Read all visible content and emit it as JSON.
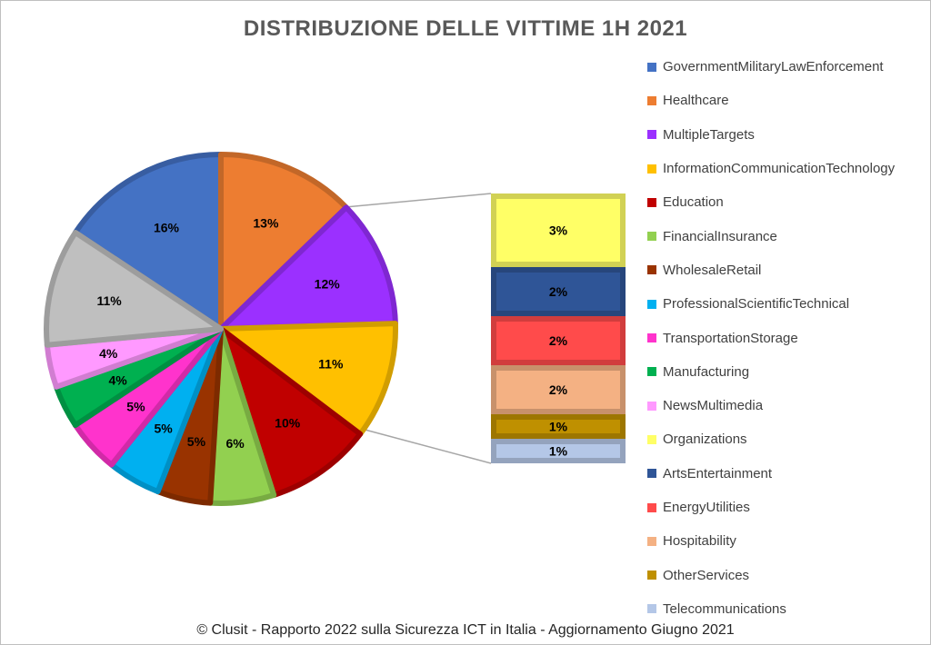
{
  "chart_data": {
    "type": "pie",
    "title": "DISTRIBUZIONE DELLE VITTIME 1H 2021",
    "categories": [
      "GovernmentMilitaryLawEnforcement",
      "Healthcare",
      "MultipleTargets",
      "InformationCommunicationTechnology",
      "Education",
      "FinancialInsurance",
      "WholesaleRetail",
      "ProfessionalScientificTechnical",
      "TransportationStorage",
      "Manufacturing",
      "NewsMultimedia",
      "Organizations",
      "ArtsEntertainment",
      "EnergyUtilities",
      "Hospitability",
      "OtherServices",
      "Telecommunications"
    ],
    "values": [
      16,
      13,
      12,
      11,
      10,
      6,
      5,
      5,
      5,
      4,
      4,
      3,
      2,
      2,
      2,
      1,
      1
    ],
    "value_labels": [
      "16%",
      "13%",
      "12%",
      "11%",
      "10%",
      "6%",
      "5%",
      "5%",
      "5%",
      "4%",
      "4%",
      "3%",
      "2%",
      "2%",
      "2%",
      "1%",
      "1%"
    ],
    "other_label": "11%",
    "secondary_categories": [
      "Organizations",
      "ArtsEntertainment",
      "EnergyUtilities",
      "Hospitability",
      "OtherServices",
      "Telecommunications"
    ],
    "colors": [
      "#4472C4",
      "#ED7D31",
      "#9B30FF",
      "#FFC000",
      "#C00000",
      "#92D050",
      "#993300",
      "#00B0F0",
      "#FF33CC",
      "#00B050",
      "#FF99FF",
      "#FFFF66",
      "#2F5597",
      "#FF4B4B",
      "#F4B183",
      "#BF9000",
      "#B4C7E7"
    ],
    "other_color": "#BFBFBF",
    "label_colors": {
      "dark": "#000000",
      "light": "#ffffff"
    },
    "legend": {
      "position": "right"
    }
  },
  "footer": "© Clusit - Rapporto 2022 sulla Sicurezza ICT in Italia - Aggiornamento Giugno 2021"
}
